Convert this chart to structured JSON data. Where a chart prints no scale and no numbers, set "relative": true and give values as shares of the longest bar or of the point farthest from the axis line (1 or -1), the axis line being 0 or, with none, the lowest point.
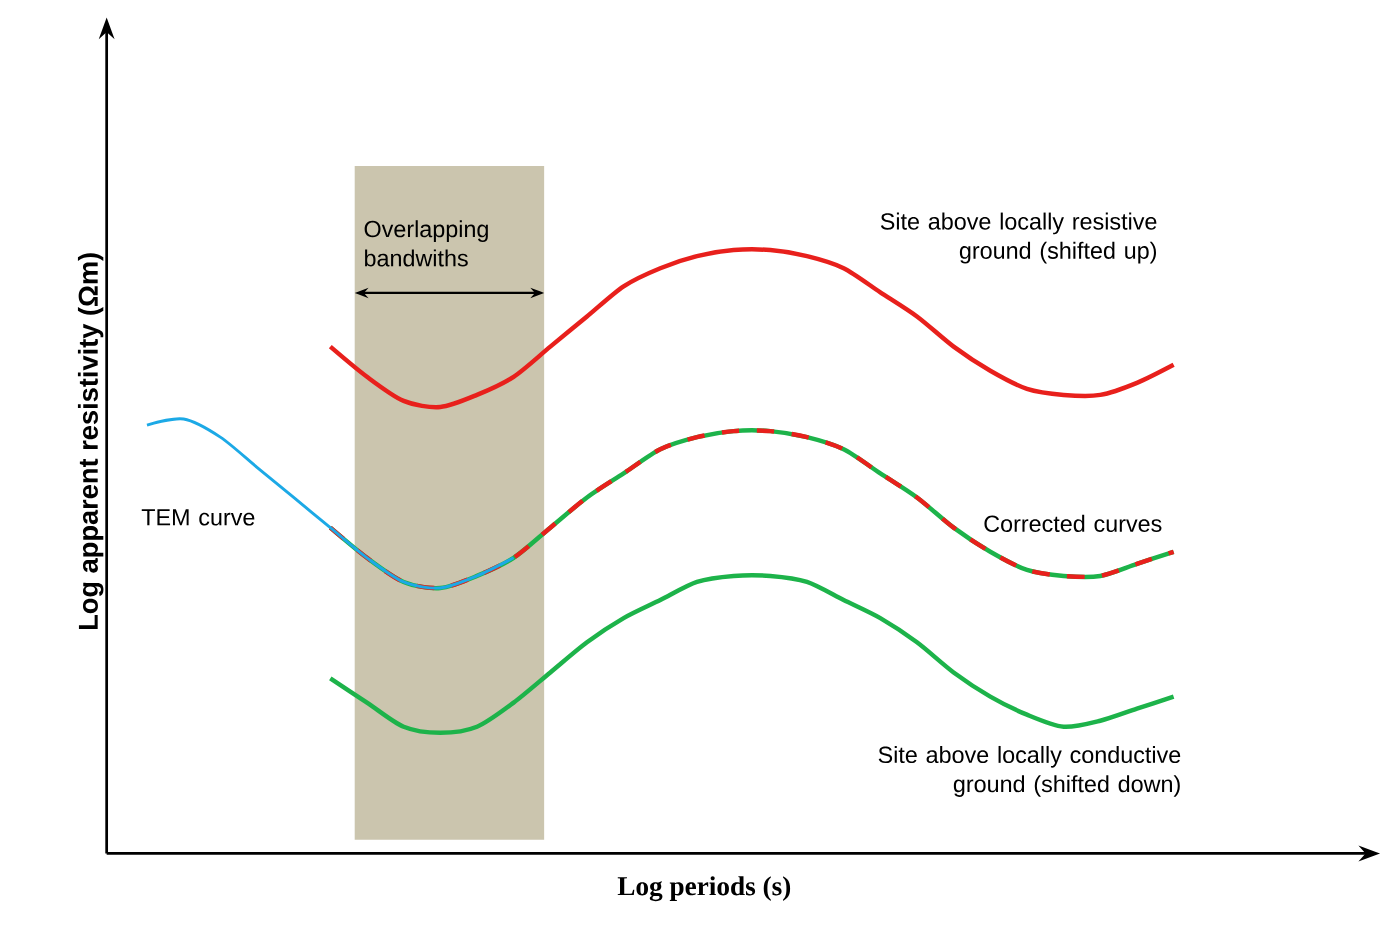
{
  "chart_data": {
    "type": "line",
    "relative": true,
    "xlabel": "Log periods (s)",
    "ylabel": "Log apparent resistivity (Ωm)",
    "categories": [
      null,
      null,
      null,
      null,
      null,
      null,
      null,
      null,
      null,
      null,
      null,
      null,
      null,
      null,
      null,
      null,
      null,
      null,
      null,
      null,
      null,
      null,
      null,
      null,
      null,
      null,
      null,
      null,
      null
    ],
    "annotations": [
      "Overlapping bandwiths"
    ],
    "series": [
      {
        "name": "TEM curve",
        "color": "#1ca9e6",
        "values": [
          0.71,
          0.72,
          0.69,
          0.64,
          0.59,
          0.54,
          0.49,
          0.45,
          0.44,
          0.46,
          0.49,
          null,
          null,
          null,
          null,
          null,
          null,
          null,
          null,
          null,
          null,
          null,
          null,
          null,
          null,
          null,
          null,
          null,
          null
        ]
      },
      {
        "name": "Site above locally resistive ground (shifted up)",
        "color": "#e8201c",
        "values": [
          null,
          null,
          null,
          null,
          null,
          0.84,
          0.79,
          0.75,
          0.74,
          0.76,
          0.79,
          0.84,
          0.89,
          0.94,
          0.97,
          0.99,
          1,
          1,
          0.99,
          0.97,
          0.93,
          0.89,
          0.84,
          0.8,
          0.77,
          0.76,
          0.76,
          0.78,
          0.81
        ]
      },
      {
        "color": "#1db34a",
        "values": [
          null,
          null,
          null,
          null,
          null,
          0.54,
          0.49,
          0.45,
          0.44,
          0.46,
          0.49,
          0.54,
          0.59,
          0.63,
          0.67,
          0.69,
          0.7,
          0.7,
          0.69,
          0.67,
          0.63,
          0.59,
          0.54,
          0.5,
          0.47,
          0.46,
          0.46,
          0.48,
          0.5
        ]
      },
      {
        "name": "Corrected curves",
        "color": "#e8201c",
        "line_style": "dashed",
        "values": [
          null,
          null,
          null,
          null,
          null,
          0.54,
          0.49,
          0.45,
          0.44,
          0.46,
          0.49,
          0.54,
          0.59,
          0.63,
          0.67,
          0.69,
          0.7,
          0.7,
          0.69,
          0.67,
          0.63,
          0.59,
          0.54,
          0.5,
          0.47,
          0.46,
          0.46,
          0.48,
          0.5
        ]
      },
      {
        "name": "Site above locally conductive ground (shifted down)",
        "color": "#1db34a",
        "values": [
          null,
          null,
          null,
          null,
          null,
          0.29,
          0.25,
          0.21,
          0.2,
          0.21,
          0.25,
          0.3,
          0.35,
          0.39,
          0.42,
          0.45,
          0.46,
          0.46,
          0.45,
          0.42,
          0.39,
          0.35,
          0.3,
          0.26,
          0.23,
          0.21,
          0.22,
          0.24,
          0.26
        ]
      }
    ]
  }
}
